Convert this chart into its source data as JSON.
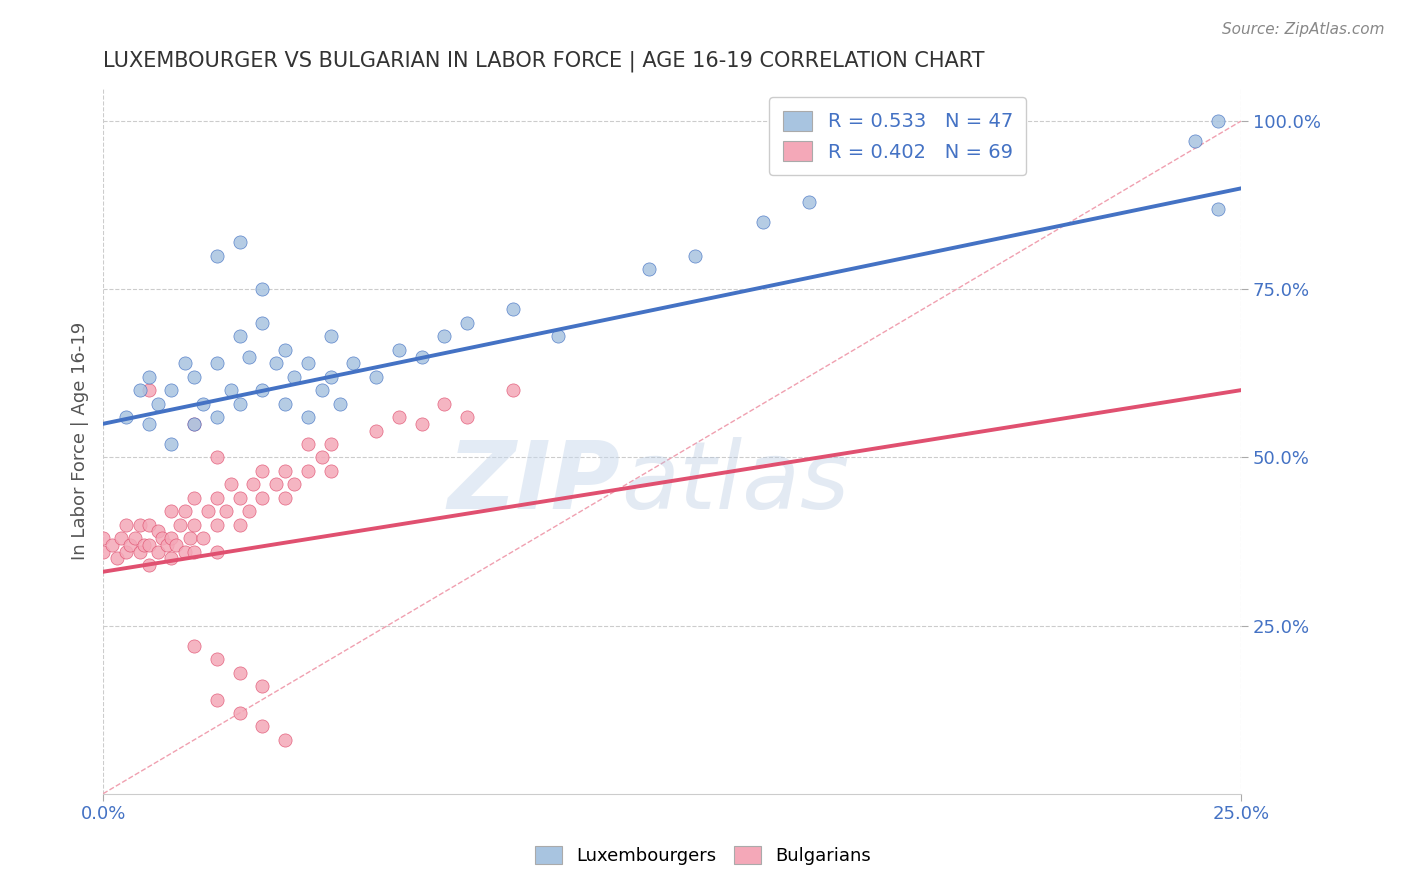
{
  "title": "LUXEMBOURGER VS BULGARIAN IN LABOR FORCE | AGE 16-19 CORRELATION CHART",
  "source_text": "Source: ZipAtlas.com",
  "ylabel": "In Labor Force | Age 16-19",
  "xlim": [
    0.0,
    0.25
  ],
  "ylim": [
    0.0,
    1.05
  ],
  "ytick_labels": [
    "25.0%",
    "50.0%",
    "75.0%",
    "100.0%"
  ],
  "ytick_vals": [
    0.25,
    0.5,
    0.75,
    1.0
  ],
  "lux_color": "#a8c4e0",
  "bulg_color": "#f4a8b8",
  "lux_line_color": "#4472c4",
  "bulg_line_color": "#e05070",
  "ref_line_color": "#f0a0b0",
  "axis_color": "#4472c4",
  "watermark_zip": "ZIP",
  "watermark_atlas": "atlas",
  "lux_R": 0.533,
  "lux_N": 47,
  "bulg_R": 0.402,
  "bulg_N": 69,
  "lux_line_x0": 0.0,
  "lux_line_y0": 0.55,
  "lux_line_x1": 0.25,
  "lux_line_y1": 0.9,
  "bulg_line_x0": 0.0,
  "bulg_line_y0": 0.33,
  "bulg_line_x1": 0.25,
  "bulg_line_y1": 0.6,
  "lux_scatter_x": [
    0.005,
    0.008,
    0.01,
    0.01,
    0.012,
    0.015,
    0.015,
    0.018,
    0.02,
    0.02,
    0.022,
    0.025,
    0.025,
    0.028,
    0.03,
    0.03,
    0.032,
    0.035,
    0.035,
    0.038,
    0.04,
    0.04,
    0.042,
    0.045,
    0.045,
    0.048,
    0.05,
    0.05,
    0.052,
    0.055,
    0.06,
    0.065,
    0.07,
    0.075,
    0.08,
    0.09,
    0.1,
    0.12,
    0.13,
    0.145,
    0.155,
    0.24,
    0.245,
    0.245,
    0.025,
    0.03,
    0.035
  ],
  "lux_scatter_y": [
    0.56,
    0.6,
    0.55,
    0.62,
    0.58,
    0.52,
    0.6,
    0.64,
    0.55,
    0.62,
    0.58,
    0.56,
    0.64,
    0.6,
    0.68,
    0.58,
    0.65,
    0.6,
    0.7,
    0.64,
    0.58,
    0.66,
    0.62,
    0.56,
    0.64,
    0.6,
    0.62,
    0.68,
    0.58,
    0.64,
    0.62,
    0.66,
    0.65,
    0.68,
    0.7,
    0.72,
    0.68,
    0.78,
    0.8,
    0.85,
    0.88,
    0.97,
    1.0,
    0.87,
    0.8,
    0.82,
    0.75
  ],
  "bulg_scatter_x": [
    0.0,
    0.0,
    0.002,
    0.003,
    0.004,
    0.005,
    0.005,
    0.006,
    0.007,
    0.008,
    0.008,
    0.009,
    0.01,
    0.01,
    0.01,
    0.012,
    0.012,
    0.013,
    0.014,
    0.015,
    0.015,
    0.015,
    0.016,
    0.017,
    0.018,
    0.018,
    0.019,
    0.02,
    0.02,
    0.02,
    0.022,
    0.023,
    0.025,
    0.025,
    0.025,
    0.027,
    0.028,
    0.03,
    0.03,
    0.032,
    0.033,
    0.035,
    0.035,
    0.038,
    0.04,
    0.04,
    0.042,
    0.045,
    0.045,
    0.048,
    0.05,
    0.05,
    0.06,
    0.065,
    0.07,
    0.075,
    0.08,
    0.09,
    0.01,
    0.02,
    0.025,
    0.02,
    0.025,
    0.03,
    0.035,
    0.025,
    0.03,
    0.035,
    0.04
  ],
  "bulg_scatter_y": [
    0.36,
    0.38,
    0.37,
    0.35,
    0.38,
    0.36,
    0.4,
    0.37,
    0.38,
    0.36,
    0.4,
    0.37,
    0.34,
    0.37,
    0.4,
    0.36,
    0.39,
    0.38,
    0.37,
    0.35,
    0.38,
    0.42,
    0.37,
    0.4,
    0.36,
    0.42,
    0.38,
    0.36,
    0.4,
    0.44,
    0.38,
    0.42,
    0.36,
    0.4,
    0.44,
    0.42,
    0.46,
    0.4,
    0.44,
    0.42,
    0.46,
    0.44,
    0.48,
    0.46,
    0.44,
    0.48,
    0.46,
    0.48,
    0.52,
    0.5,
    0.48,
    0.52,
    0.54,
    0.56,
    0.55,
    0.58,
    0.56,
    0.6,
    0.6,
    0.55,
    0.5,
    0.22,
    0.2,
    0.18,
    0.16,
    0.14,
    0.12,
    0.1,
    0.08
  ]
}
